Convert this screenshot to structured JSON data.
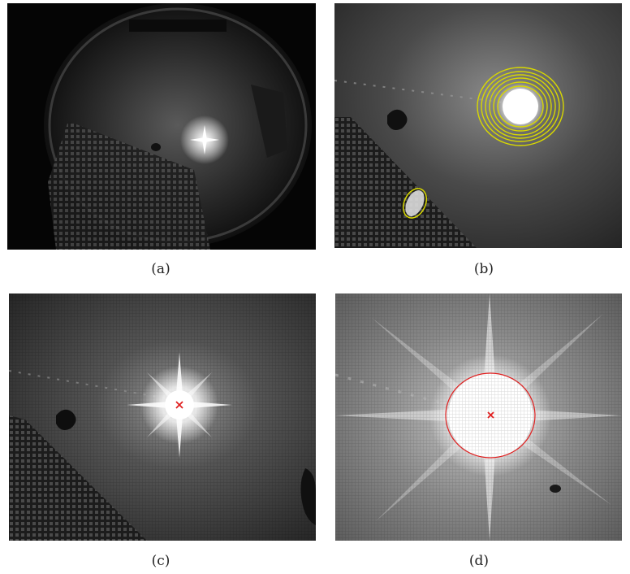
{
  "figure": {
    "panels": [
      {
        "id": "a",
        "caption": "(a)"
      },
      {
        "id": "b",
        "caption": "(b)"
      },
      {
        "id": "c",
        "caption": "(c)"
      },
      {
        "id": "d",
        "caption": "(d)"
      }
    ]
  },
  "colors": {
    "ellipse_outline": "#d8d800",
    "marker": "#e02020",
    "circle_outline": "#e02020"
  }
}
